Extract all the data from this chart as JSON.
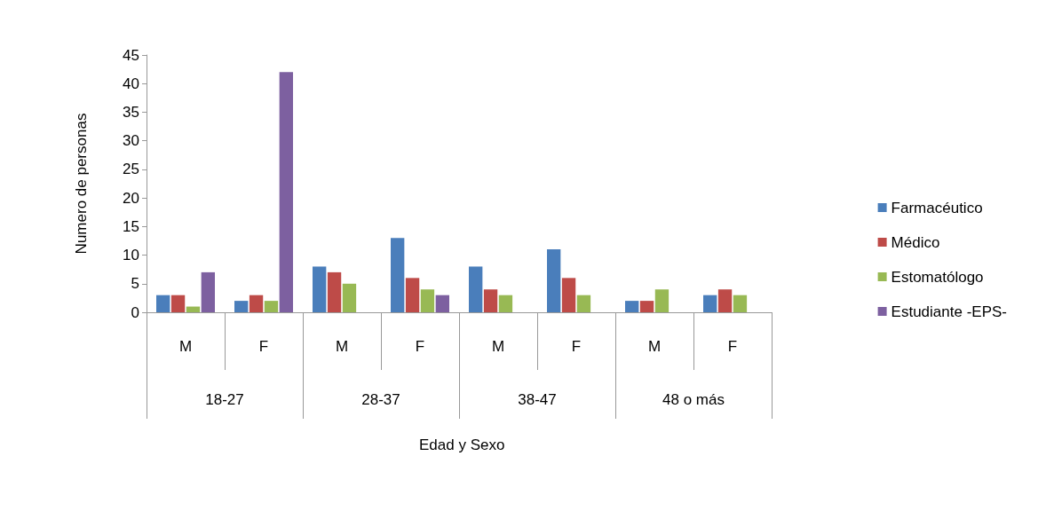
{
  "chart_data": {
    "type": "bar",
    "ylabel": "Numero de personas",
    "categories": [
      "M",
      "F",
      "M",
      "F",
      "M",
      "F",
      "M",
      "F"
    ],
    "annotations": [
      "18-27",
      "28-37",
      "38-47",
      "48 o más",
      "Edad y Sexo"
    ],
    "series": [
      {
        "name": "Farmacéutico",
        "color": "#4a7ebb",
        "values": [
          3,
          2,
          8,
          13,
          8,
          11,
          2,
          3
        ]
      },
      {
        "name": "Médico",
        "color": "#be4b48",
        "values": [
          3,
          3,
          7,
          6,
          4,
          6,
          2,
          4
        ]
      },
      {
        "name": "Estomatólogo",
        "color": "#98b954",
        "values": [
          1,
          2,
          5,
          4,
          3,
          3,
          4,
          3
        ]
      },
      {
        "name": "Estudiante -EPS-",
        "color": "#7d60a0",
        "values": [
          7,
          42,
          0,
          3,
          0,
          0,
          0,
          0
        ]
      }
    ],
    "ylim": [
      0,
      45
    ],
    "yticks": [
      0,
      5,
      10,
      15,
      20,
      25,
      30,
      35,
      40,
      45
    ],
    "grid": false,
    "legend": "right"
  }
}
